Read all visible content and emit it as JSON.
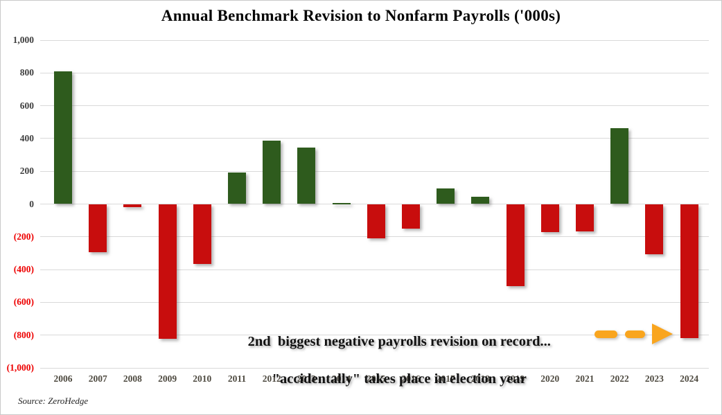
{
  "chart_data": {
    "type": "bar",
    "title": "Annual Benchmark Revision to Nonfarm Payrolls ('000s)",
    "categories": [
      "2006",
      "2007",
      "2008",
      "2009",
      "2010",
      "2011",
      "2012",
      "2013",
      "2014",
      "2015",
      "2016",
      "2017",
      "2018",
      "2019",
      "2020",
      "2021",
      "2022",
      "2023",
      "2024"
    ],
    "values": [
      810,
      -293,
      -21,
      -824,
      -366,
      192,
      386,
      345,
      7,
      -208,
      -150,
      95,
      43,
      -501,
      -173,
      -166,
      462,
      -306,
      -818
    ],
    "xlabel": "",
    "ylabel": "",
    "ylim": [
      -1000,
      1000
    ],
    "ytick_interval": 200,
    "ytick_labels": [
      "1,000",
      "800",
      "600",
      "400",
      "200",
      "0",
      "(200)",
      "(400)",
      "(600)",
      "(800)",
      "(1,000)"
    ],
    "grid": "horizontal-only",
    "legend": "none",
    "annotation": {
      "line1": "2nd  biggest negative payrolls revision on record...",
      "line2": "\"accidentally\" takes place in election year"
    },
    "arrow": {
      "style": "dashed",
      "direction": "right",
      "points_to": "2024",
      "color": "#F9A51E"
    },
    "colors": {
      "positive_bar": "#2E5B1D",
      "negative_bar": "#C80D0D",
      "positive_tick_text": "#3F3F3F",
      "negative_tick_text": "#EE0000",
      "gridline": "#D9D9D9"
    }
  },
  "source_note": "Source: ZeroHedge"
}
